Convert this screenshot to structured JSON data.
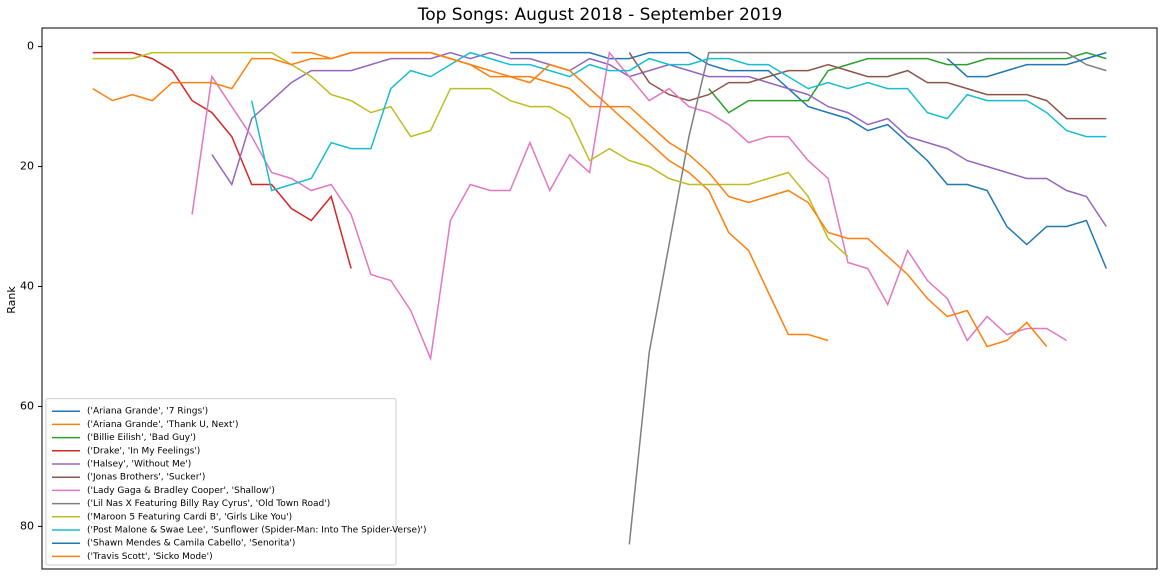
{
  "chart_data": {
    "type": "line",
    "title": "Top Songs: August 2018 - September 2019",
    "y_label": "Rank",
    "categories": [
      null,
      null,
      null,
      null,
      null,
      null,
      null,
      null,
      null,
      null,
      null,
      null,
      null,
      null,
      null,
      null,
      null,
      null,
      null,
      null,
      null,
      null,
      null,
      null,
      null,
      null,
      null,
      null,
      null,
      null,
      null,
      null,
      null,
      null,
      null,
      null,
      null,
      null,
      null,
      null,
      null,
      null,
      null,
      null,
      null,
      null,
      null,
      null,
      null,
      null,
      null,
      null
    ],
    "xlim": [
      -2.55,
      53.55
    ],
    "ylim": [
      87.1,
      -3.1
    ],
    "yticks": [
      0,
      20,
      40,
      60,
      80
    ],
    "legend": "lower left",
    "series": [
      {
        "name": "('Ariana Grande', '7 Rings')",
        "color": "#1f77b4",
        "values": [
          null,
          null,
          null,
          null,
          null,
          null,
          null,
          null,
          null,
          null,
          null,
          null,
          null,
          null,
          null,
          null,
          null,
          null,
          null,
          null,
          null,
          1,
          1,
          1,
          1,
          1,
          2,
          2,
          1,
          1,
          1,
          3,
          4,
          4,
          4,
          7,
          10,
          11,
          12,
          14,
          13,
          16,
          19,
          23,
          23,
          24,
          30,
          33,
          30,
          30,
          29,
          37
        ]
      },
      {
        "name": "('Ariana Grande', 'Thank U, Next')",
        "color": "#ff7f0e",
        "values": [
          null,
          null,
          null,
          null,
          null,
          null,
          null,
          null,
          null,
          null,
          1,
          1,
          2,
          1,
          1,
          1,
          1,
          1,
          2,
          3,
          4,
          5,
          5,
          6,
          7,
          10,
          10,
          13,
          16,
          19,
          21,
          24,
          31,
          34,
          41,
          48,
          48,
          49,
          null,
          null,
          null,
          null,
          null,
          null,
          null,
          null,
          null,
          null,
          null,
          null,
          null,
          null
        ]
      },
      {
        "name": "('Billie Eilish', 'Bad Guy')",
        "color": "#2ca02c",
        "values": [
          null,
          null,
          null,
          null,
          null,
          null,
          null,
          null,
          null,
          null,
          null,
          null,
          null,
          null,
          null,
          null,
          null,
          null,
          null,
          null,
          null,
          null,
          null,
          null,
          null,
          null,
          null,
          null,
          null,
          null,
          null,
          7,
          11,
          9,
          9,
          9,
          9,
          4,
          3,
          2,
          2,
          2,
          2,
          3,
          3,
          2,
          2,
          2,
          2,
          2,
          1,
          2
        ]
      },
      {
        "name": "('Drake', 'In My Feelings')",
        "color": "#d62728",
        "values": [
          1,
          1,
          1,
          2,
          4,
          9,
          11,
          15,
          23,
          23,
          27,
          29,
          25,
          37,
          null,
          null,
          null,
          null,
          null,
          null,
          null,
          null,
          null,
          null,
          null,
          null,
          null,
          null,
          null,
          null,
          null,
          null,
          null,
          null,
          null,
          null,
          null,
          null,
          null,
          null,
          null,
          null,
          null,
          null,
          null,
          null,
          null,
          null,
          null,
          null,
          null,
          null
        ]
      },
      {
        "name": "('Halsey', 'Without Me')",
        "color": "#9467bd",
        "values": [
          null,
          null,
          null,
          null,
          null,
          null,
          18,
          23,
          12,
          9,
          6,
          4,
          4,
          4,
          3,
          2,
          2,
          2,
          1,
          2,
          1,
          2,
          2,
          3,
          4,
          2,
          3,
          5,
          4,
          3,
          4,
          5,
          5,
          5,
          6,
          7,
          8,
          10,
          11,
          13,
          12,
          15,
          16,
          17,
          19,
          20,
          21,
          22,
          22,
          24,
          25,
          30
        ]
      },
      {
        "name": "('Jonas Brothers', 'Sucker')",
        "color": "#8c564b",
        "values": [
          null,
          null,
          null,
          null,
          null,
          null,
          null,
          null,
          null,
          null,
          null,
          null,
          null,
          null,
          null,
          null,
          null,
          null,
          null,
          null,
          null,
          null,
          null,
          null,
          null,
          null,
          null,
          1,
          6,
          8,
          9,
          8,
          6,
          6,
          5,
          4,
          4,
          3,
          4,
          5,
          5,
          4,
          6,
          6,
          7,
          8,
          8,
          8,
          9,
          12,
          12,
          12
        ]
      },
      {
        "name": "('Lady Gaga & Bradley Cooper', 'Shallow')",
        "color": "#e377c2",
        "values": [
          null,
          null,
          null,
          null,
          null,
          28,
          5,
          10,
          15,
          21,
          22,
          24,
          23,
          28,
          38,
          39,
          44,
          52,
          29,
          23,
          24,
          24,
          16,
          24,
          18,
          21,
          1,
          5,
          9,
          7,
          10,
          11,
          13,
          16,
          15,
          15,
          19,
          22,
          36,
          37,
          43,
          34,
          39,
          42,
          49,
          45,
          48,
          47,
          47,
          49,
          null,
          null
        ]
      },
      {
        "name": "('Lil Nas X Featuring Billy Ray Cyrus', 'Old Town Road')",
        "color": "#7f7f7f",
        "values": [
          null,
          null,
          null,
          null,
          null,
          null,
          null,
          null,
          null,
          null,
          null,
          null,
          null,
          null,
          null,
          null,
          null,
          null,
          null,
          null,
          null,
          null,
          null,
          null,
          null,
          null,
          null,
          83,
          51,
          33,
          15,
          1,
          1,
          1,
          1,
          1,
          1,
          1,
          1,
          1,
          1,
          1,
          1,
          1,
          1,
          1,
          1,
          1,
          1,
          1,
          3,
          4
        ]
      },
      {
        "name": "('Maroon 5 Featuring Cardi B', 'Girls Like You')",
        "color": "#bcbd22",
        "values": [
          2,
          2,
          2,
          1,
          1,
          1,
          1,
          1,
          1,
          1,
          3,
          5,
          8,
          9,
          11,
          10,
          15,
          14,
          7,
          7,
          7,
          9,
          10,
          10,
          12,
          19,
          17,
          19,
          20,
          22,
          23,
          23,
          23,
          23,
          22,
          21,
          25,
          32,
          35,
          null,
          null,
          null,
          null,
          null,
          null,
          null,
          null,
          null,
          null,
          null,
          null,
          null
        ]
      },
      {
        "name": "('Post Malone & Swae Lee', 'Sunflower (Spider-Man: Into The Spider-Verse)')",
        "color": "#17becf",
        "values": [
          null,
          null,
          null,
          null,
          null,
          null,
          null,
          null,
          9,
          24,
          23,
          22,
          16,
          17,
          17,
          7,
          4,
          5,
          3,
          1,
          2,
          3,
          3,
          4,
          5,
          3,
          4,
          4,
          2,
          3,
          3,
          2,
          2,
          3,
          3,
          5,
          7,
          6,
          7,
          6,
          7,
          7,
          11,
          12,
          8,
          9,
          9,
          9,
          11,
          14,
          15,
          15
        ]
      },
      {
        "name": "('Shawn Mendes & Camila Cabello', 'Senorita')",
        "color": "#1f77b4",
        "values": [
          null,
          null,
          null,
          null,
          null,
          null,
          null,
          null,
          null,
          null,
          null,
          null,
          null,
          null,
          null,
          null,
          null,
          null,
          null,
          null,
          null,
          null,
          null,
          null,
          null,
          null,
          null,
          null,
          null,
          null,
          null,
          null,
          null,
          null,
          null,
          null,
          null,
          null,
          null,
          null,
          null,
          null,
          null,
          2,
          5,
          5,
          4,
          3,
          3,
          3,
          2,
          1
        ]
      },
      {
        "name": "('Travis Scott', 'Sicko Mode')",
        "color": "#ff7f0e",
        "values": [
          7,
          9,
          8,
          9,
          6,
          6,
          6,
          7,
          2,
          2,
          3,
          2,
          2,
          1,
          1,
          1,
          1,
          1,
          2,
          3,
          5,
          5,
          6,
          3,
          4,
          7,
          10,
          10,
          13,
          16,
          18,
          21,
          25,
          26,
          25,
          24,
          26,
          31,
          32,
          32,
          35,
          38,
          42,
          45,
          44,
          50,
          49,
          46,
          50,
          null,
          null,
          null
        ]
      }
    ]
  }
}
